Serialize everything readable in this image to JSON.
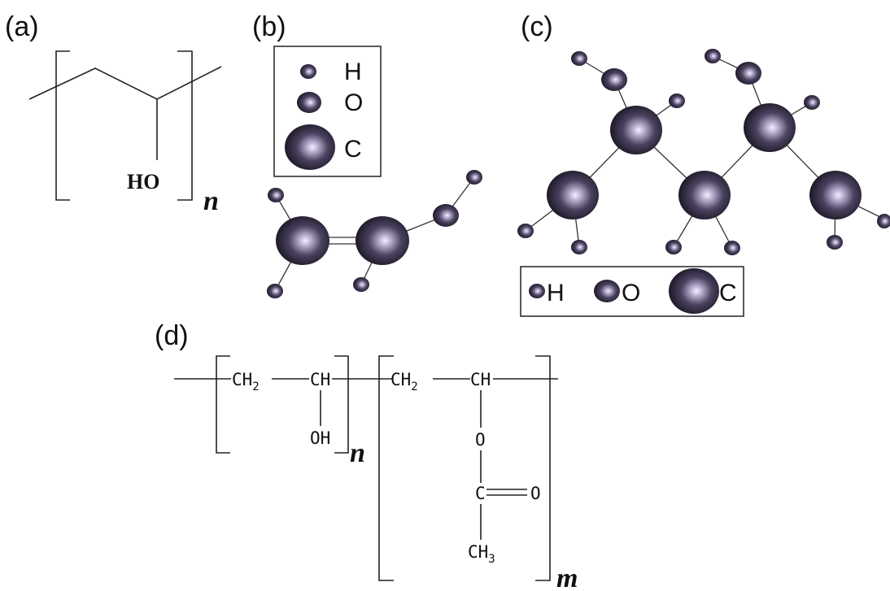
{
  "panels": {
    "a": {
      "label": "(a)",
      "group": "HO",
      "repeat": "n"
    },
    "b": {
      "label": "(b)",
      "legend": {
        "h": "H",
        "o": "O",
        "c": "C"
      }
    },
    "c": {
      "label": "(c)",
      "legend": {
        "h": "H",
        "o": "O",
        "c": "C"
      }
    },
    "d": {
      "label": "(d)",
      "ch2_a": "CH",
      "ch2_a_sub": "2",
      "ch_a": "CH",
      "oh": "OH",
      "repeat_n": "n",
      "ch2_b": "CH",
      "ch2_b_sub": "2",
      "ch_b": "CH",
      "o_link": "O",
      "c_carbonyl": "C",
      "o_carbonyl": "O",
      "ch3": "CH",
      "ch3_sub": "3",
      "repeat_m": "m"
    }
  },
  "colors": {
    "ink": "#111111",
    "atom_dark": "#2a2438",
    "atom_light": "#f2efff"
  }
}
